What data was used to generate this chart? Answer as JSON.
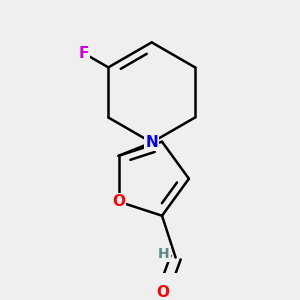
{
  "bg_color": "#efefef",
  "atom_colors": {
    "C": "#000000",
    "N": "#0000ee",
    "O": "#ff0000",
    "F": "#cc00cc",
    "H": "#5a8a8a"
  },
  "bond_color": "#000000",
  "figsize": [
    3.0,
    3.0
  ],
  "dpi": 100
}
